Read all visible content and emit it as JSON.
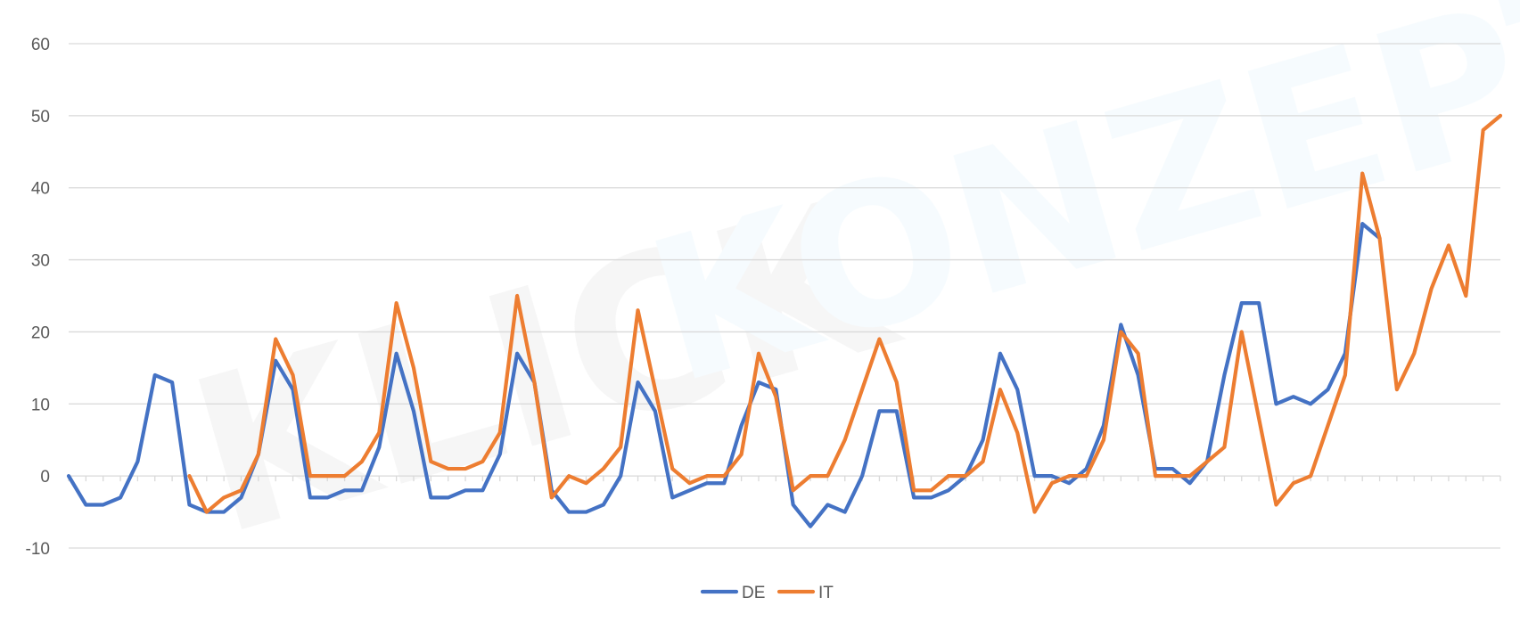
{
  "chart_data": {
    "type": "line",
    "title": "",
    "xlabel": "",
    "ylabel": "",
    "ylim": [
      -10,
      60
    ],
    "yticks": [
      -10,
      0,
      10,
      20,
      30,
      40,
      50,
      60
    ],
    "grid": true,
    "legend_position": "bottom",
    "watermark": {
      "left": "KLICK",
      "right": "KONZEPT"
    },
    "series": [
      {
        "name": "DE",
        "color": "#4472C4",
        "values": [
          0,
          -4,
          -4,
          -3,
          2,
          14,
          13,
          -4,
          -5,
          -5,
          -3,
          3,
          16,
          12,
          -3,
          -3,
          -2,
          -2,
          4,
          17,
          9,
          -3,
          -3,
          -2,
          -2,
          3,
          17,
          13,
          -2,
          -5,
          -5,
          -4,
          0,
          13,
          9,
          -3,
          -2,
          -1,
          -1,
          7,
          13,
          12,
          -4,
          -7,
          -4,
          -5,
          0,
          9,
          9,
          -3,
          -3,
          -2,
          0,
          5,
          17,
          12,
          0,
          0,
          -1,
          1,
          7,
          21,
          14,
          1,
          1,
          -1,
          2,
          14,
          24,
          24,
          10,
          11,
          10,
          12,
          17,
          35,
          33
        ]
      },
      {
        "name": "IT",
        "color": "#ED7D31",
        "values": [
          null,
          null,
          null,
          null,
          null,
          null,
          null,
          0,
          -5,
          -3,
          -2,
          3,
          19,
          14,
          0,
          0,
          0,
          2,
          6,
          24,
          15,
          2,
          1,
          1,
          2,
          6,
          25,
          13,
          -3,
          0,
          -1,
          1,
          4,
          23,
          12,
          1,
          -1,
          0,
          0,
          3,
          17,
          11,
          -2,
          0,
          0,
          5,
          12,
          19,
          13,
          -2,
          -2,
          0,
          0,
          2,
          12,
          6,
          -5,
          -1,
          0,
          0,
          5,
          20,
          17,
          0,
          0,
          0,
          2,
          4,
          20,
          8,
          -4,
          -1,
          0,
          7,
          14,
          42,
          33,
          12,
          17,
          26,
          32,
          25,
          48,
          50
        ]
      }
    ]
  }
}
